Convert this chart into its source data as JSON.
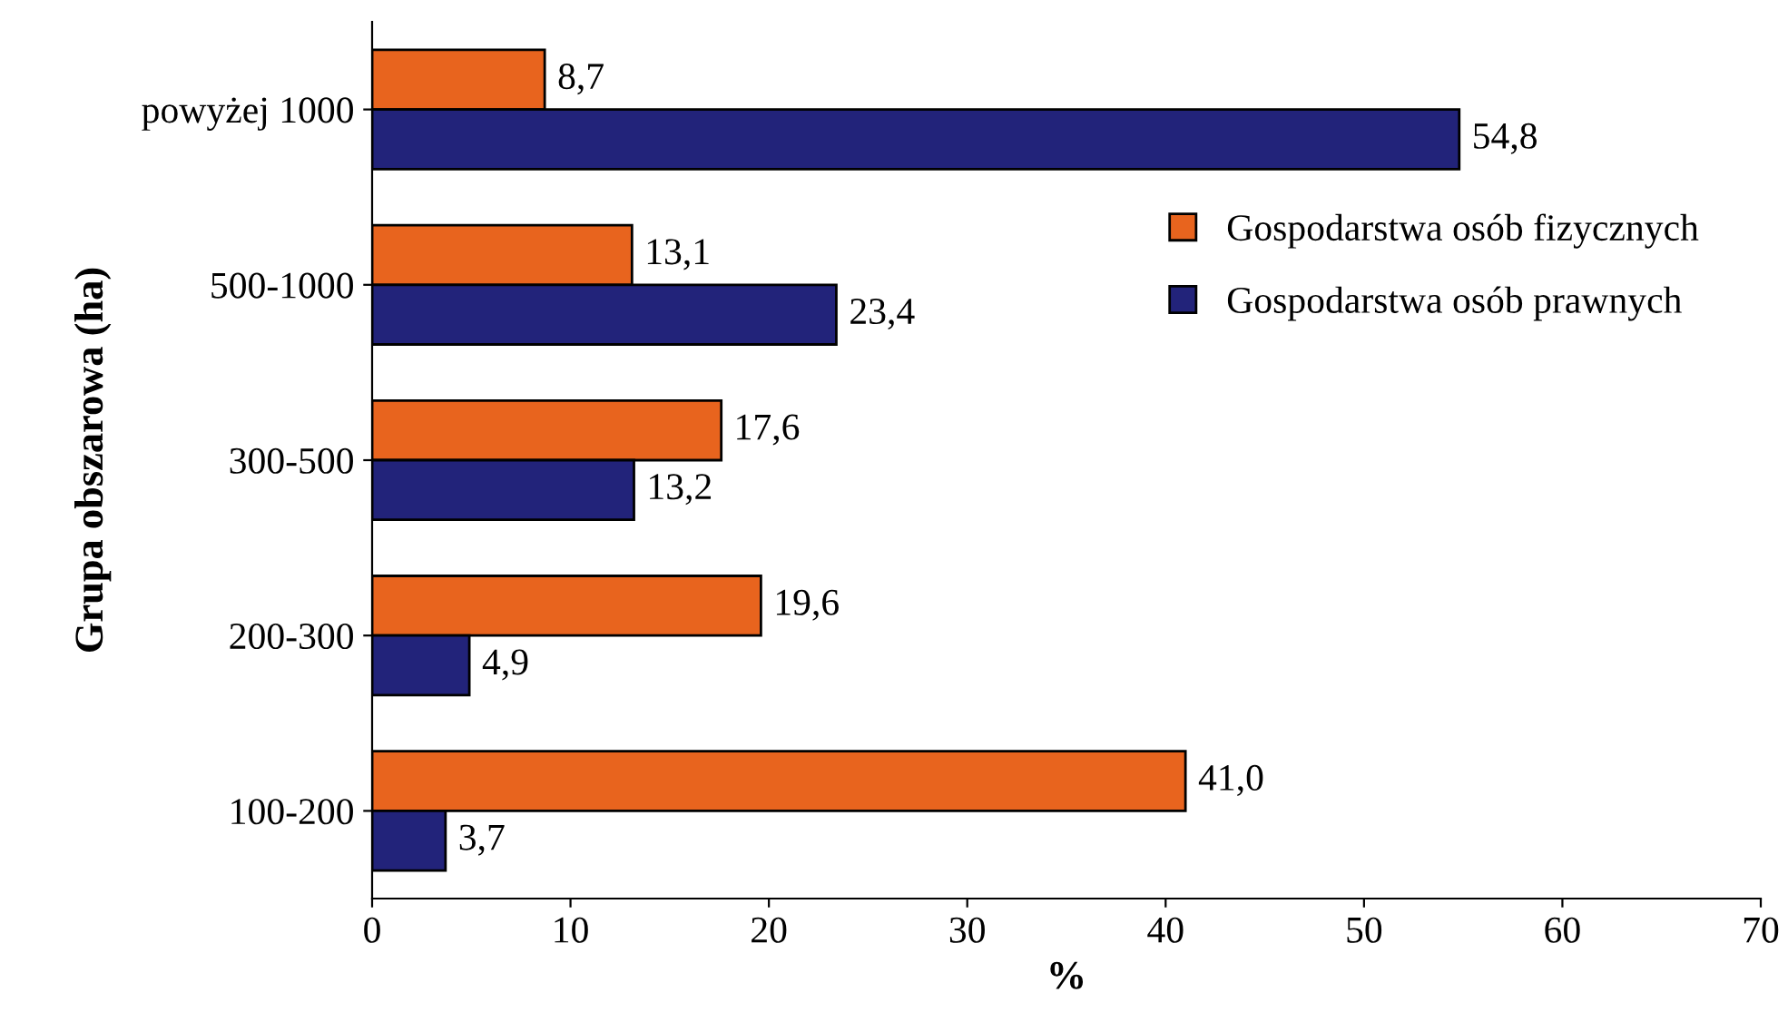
{
  "chart_data": {
    "type": "bar",
    "orientation": "horizontal",
    "xlabel": "%",
    "ylabel": "Grupa obszarowa (ha)",
    "categories": [
      "powyżej 1000",
      "500-1000",
      "300-500",
      "200-300",
      "100-200"
    ],
    "series": [
      {
        "name": "Gospodarstwa osób fizycznych",
        "color": "#e8641e",
        "values": [
          8.7,
          13.1,
          17.6,
          19.6,
          41.0
        ],
        "value_labels": [
          "8,7",
          "13,1",
          "17,6",
          "19,6",
          "41,0"
        ]
      },
      {
        "name": "Gospodarstwa osób prawnych",
        "color": "#22237a",
        "values": [
          54.8,
          23.4,
          13.2,
          4.9,
          3.7
        ],
        "value_labels": [
          "54,8",
          "23,4",
          "13,2",
          "4,9",
          "3,7"
        ]
      }
    ],
    "xlim": [
      0,
      70
    ],
    "xticks": [
      0,
      10,
      20,
      30,
      40,
      50,
      60,
      70
    ],
    "grid": false,
    "legend": "right"
  }
}
